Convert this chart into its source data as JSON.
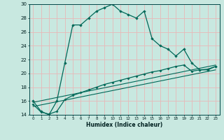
{
  "xlabel": "Humidex (Indice chaleur)",
  "bg_color": "#c8e8e0",
  "grid_color": "#e8b8b8",
  "line_color": "#006858",
  "xlim": [
    -0.5,
    23.5
  ],
  "ylim": [
    14,
    30
  ],
  "xticks": [
    0,
    1,
    2,
    3,
    4,
    5,
    6,
    7,
    8,
    9,
    10,
    11,
    12,
    13,
    14,
    15,
    16,
    17,
    18,
    19,
    20,
    21,
    22,
    23
  ],
  "yticks": [
    14,
    16,
    18,
    20,
    22,
    24,
    26,
    28,
    30
  ],
  "series1_x": [
    0,
    1,
    2,
    3,
    4,
    5,
    6,
    7,
    8,
    9,
    10,
    11,
    12,
    13,
    14,
    15,
    16,
    17,
    18,
    19,
    20,
    21,
    22,
    23
  ],
  "series1_y": [
    16,
    14.5,
    14,
    16,
    21.5,
    27,
    27,
    28,
    29,
    29.5,
    30,
    29,
    28.5,
    28,
    29,
    25,
    24,
    23.5,
    22.5,
    23.5,
    21.5,
    20.5,
    20.5,
    21
  ],
  "series2_x": [
    0,
    1,
    2,
    3,
    4,
    5,
    6,
    7,
    8,
    9,
    10,
    11,
    12,
    13,
    14,
    15,
    16,
    17,
    18,
    19,
    20,
    21,
    22,
    23
  ],
  "series2_y": [
    15.5,
    14.4,
    14.1,
    14.5,
    16.2,
    16.8,
    17.2,
    17.6,
    18.0,
    18.4,
    18.7,
    19.0,
    19.3,
    19.6,
    19.9,
    20.2,
    20.4,
    20.7,
    21.0,
    21.2,
    20.3,
    20.5,
    20.6,
    21.0
  ],
  "line3_x": [
    0,
    23
  ],
  "line3_y": [
    15.2,
    20.5
  ],
  "line4_x": [
    0,
    23
  ],
  "line4_y": [
    15.8,
    21.2
  ]
}
